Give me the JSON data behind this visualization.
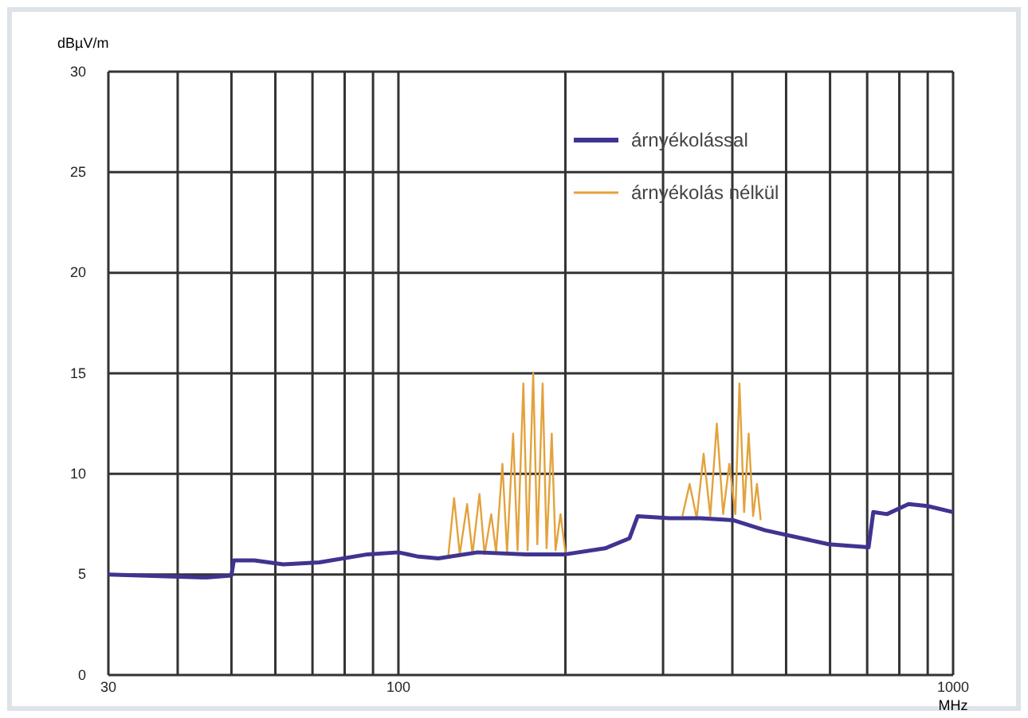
{
  "chart_data": {
    "type": "line",
    "ylabel": "dBµV/m",
    "xlabel": "MHz",
    "log": "x",
    "grid": true,
    "legend": "top right",
    "xlim": [
      30,
      1000
    ],
    "xticks": [
      30,
      {
        "value": 40,
        "label": null
      },
      {
        "value": 50,
        "label": null
      },
      {
        "value": 60,
        "label": null
      },
      {
        "value": 70,
        "label": null
      },
      {
        "value": 80,
        "label": null
      },
      {
        "value": 90,
        "label": null
      },
      100,
      {
        "value": 200,
        "label": null
      },
      {
        "value": 300,
        "label": null
      },
      {
        "value": 400,
        "label": null
      },
      {
        "value": 500,
        "label": null
      },
      {
        "value": 600,
        "label": null
      },
      {
        "value": 700,
        "label": null
      },
      {
        "value": 800,
        "label": null
      },
      {
        "value": 900,
        "label": null
      },
      1000
    ],
    "ylim": [
      0,
      30
    ],
    "yticks": [
      0,
      5,
      10,
      15,
      20,
      25,
      30
    ],
    "series": [
      {
        "name": "árnyékolás nélkül",
        "color": "#e3a23c",
        "x": [
          123,
          126,
          129,
          133,
          136,
          140,
          143,
          147,
          150,
          154,
          157,
          161,
          164,
          168,
          171,
          175,
          178,
          182,
          185,
          189,
          192,
          196,
          200,
          260,
          325,
          335,
          345,
          355,
          365,
          375,
          385,
          395,
          405,
          412,
          420,
          428,
          436,
          443,
          450
        ],
        "values": [
          5.9,
          8.8,
          6.0,
          8.5,
          6.0,
          9.0,
          6.0,
          8.0,
          6.1,
          10.5,
          6.1,
          12,
          6.2,
          14.5,
          6.2,
          15,
          6.5,
          14.5,
          6.3,
          12,
          6.2,
          8,
          6.1,
          null,
          7.9,
          9.5,
          7.8,
          11,
          7.9,
          12.5,
          8.0,
          10.5,
          8.0,
          14.5,
          8.1,
          12,
          7.9,
          9.5,
          7.7
        ]
      },
      {
        "name": "árnyékolással",
        "color": "#3f3490",
        "x": [
          30,
          45,
          50,
          50.5,
          55,
          62,
          72,
          88,
          100,
          108,
          118,
          139,
          170,
          200,
          236,
          261,
          270,
          308,
          350,
          401,
          458,
          597,
          704,
          718,
          760,
          831,
          900,
          1000
        ],
        "values": [
          5.0,
          4.85,
          4.95,
          5.7,
          5.7,
          5.5,
          5.6,
          6.0,
          6.1,
          5.9,
          5.8,
          6.1,
          6.0,
          6.0,
          6.3,
          6.8,
          7.9,
          7.8,
          7.8,
          7.7,
          7.2,
          6.5,
          6.35,
          8.1,
          8.0,
          8.5,
          8.4,
          8.1
        ]
      }
    ]
  }
}
